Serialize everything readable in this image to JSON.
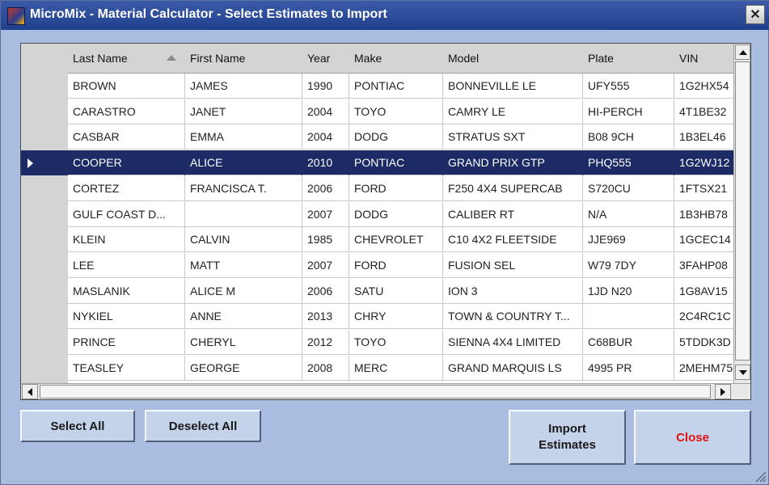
{
  "window": {
    "title": "MicroMix - Material Calculator - Select Estimates to Import",
    "close_glyph": "✕"
  },
  "grid": {
    "columns": [
      "Last Name",
      "First Name",
      "Year",
      "Make",
      "Model",
      "Plate",
      "VIN"
    ],
    "sort_column": "Last Name",
    "sort_direction": "ascending",
    "selected_row": 3,
    "rows": [
      [
        "BROWN",
        "JAMES",
        "1990",
        "PONTIAC",
        "BONNEVILLE LE",
        "UFY555",
        "1G2HX54"
      ],
      [
        "CARASTRO",
        "JANET",
        "2004",
        "TOYO",
        "CAMRY LE",
        "HI-PERCH",
        "4T1BE32"
      ],
      [
        "CASBAR",
        "EMMA",
        "2004",
        "DODG",
        "STRATUS SXT",
        "B08 9CH",
        "1B3EL46"
      ],
      [
        "COOPER",
        "ALICE",
        "2010",
        "PONTIAC",
        "GRAND PRIX GTP",
        "PHQ555",
        "1G2WJ12"
      ],
      [
        "CORTEZ",
        "FRANCISCA T.",
        "2006",
        "FORD",
        "F250 4X4 SUPERCAB",
        "S720CU",
        "1FTSX21"
      ],
      [
        "GULF COAST D...",
        "",
        "2007",
        "DODG",
        "CALIBER RT",
        "N/A",
        "1B3HB78"
      ],
      [
        "KLEIN",
        "CALVIN",
        "1985",
        "CHEVROLET",
        "C10 4X2 FLEETSIDE",
        "JJE969",
        "1GCEC14"
      ],
      [
        "LEE",
        "MATT",
        "2007",
        "FORD",
        "FUSION SEL",
        "W79 7DY",
        "3FAHP08"
      ],
      [
        "MASLANIK",
        "ALICE M",
        "2006",
        "SATU",
        "ION 3",
        "1JD N20",
        "1G8AV15"
      ],
      [
        "NYKIEL",
        "ANNE",
        "2013",
        "CHRY",
        "TOWN & COUNTRY T...",
        "",
        "2C4RC1C"
      ],
      [
        "PRINCE",
        "CHERYL",
        "2012",
        "TOYO",
        "SIENNA 4X4 LIMITED",
        "C68BUR",
        "5TDDK3D"
      ],
      [
        "TEASLEY",
        "GEORGE",
        "2008",
        "MERC",
        "GRAND MARQUIS LS",
        "4995 PR",
        "2MEHM75"
      ]
    ]
  },
  "buttons": {
    "select_all": "Select All",
    "deselect_all": "Deselect All",
    "import_estimates": "Import Estimates",
    "close": "Close"
  },
  "colors": {
    "selection": "#1c2a66",
    "close_text": "#e01010",
    "title_bar": "#203f8c"
  }
}
